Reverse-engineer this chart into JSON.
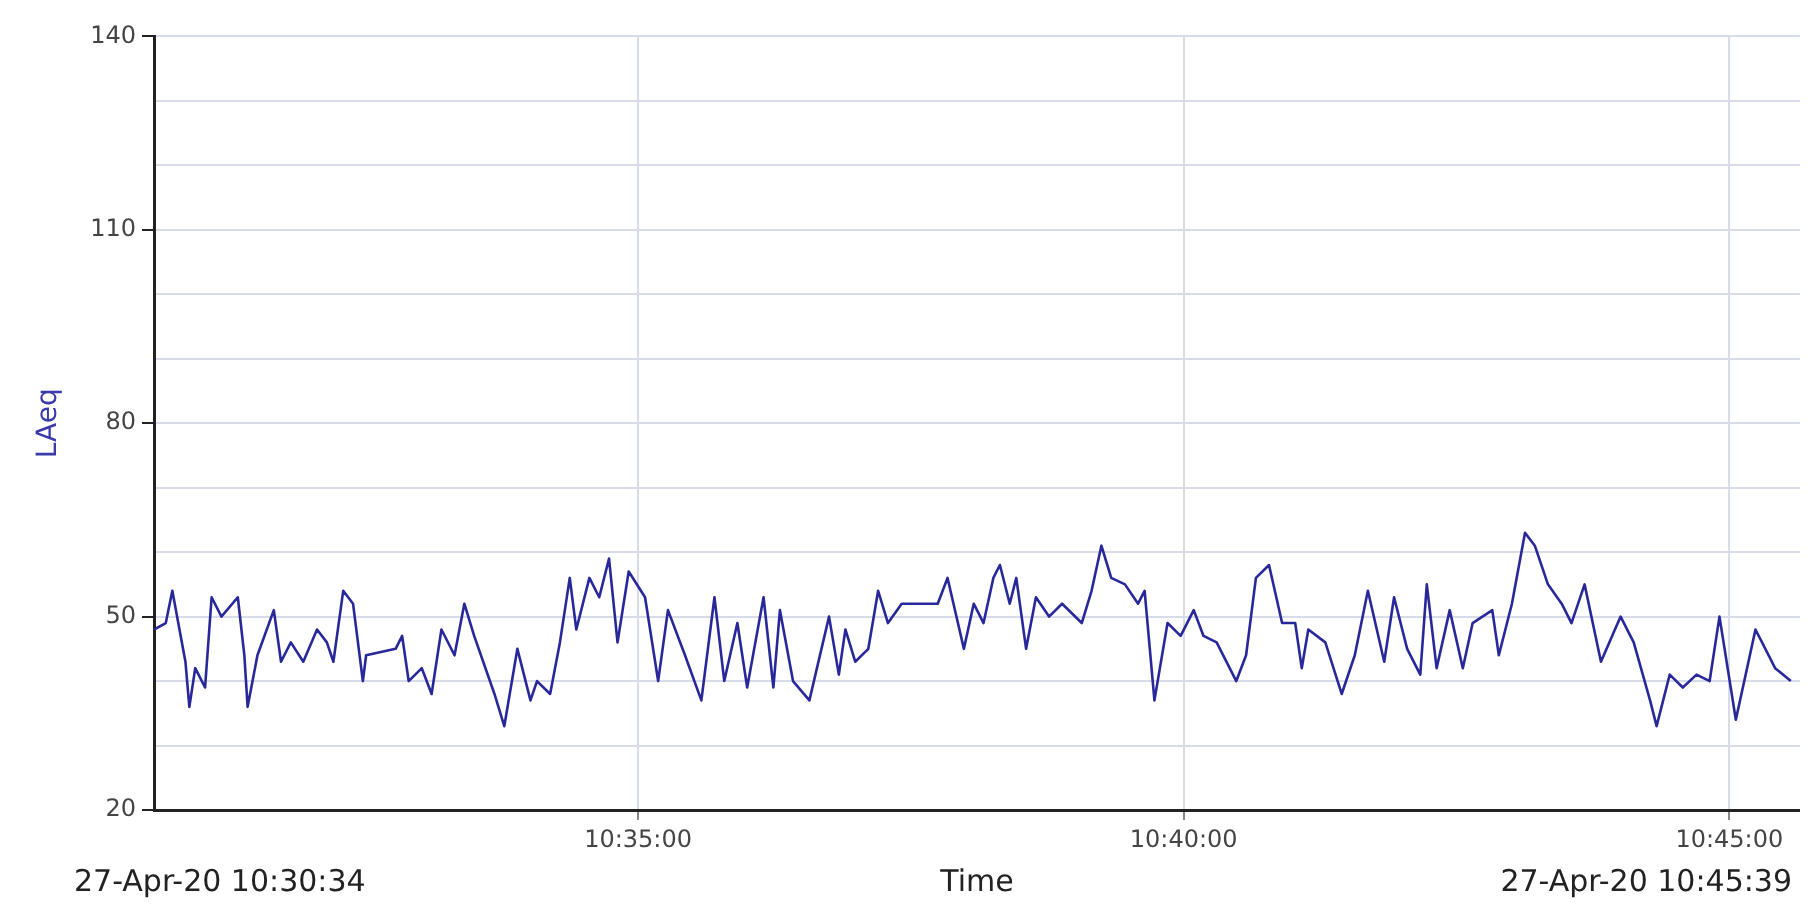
{
  "chart_data": {
    "type": "line",
    "ylabel": "LAeq",
    "xlabel": "Time",
    "annotations": [
      "27-Apr-20 10:30:34",
      "27-Apr-20 10:45:39"
    ],
    "xlim": [
      10.5094,
      10.7608
    ],
    "xticks": [
      {
        "value": 10.58333,
        "label": "10:35:00"
      },
      {
        "value": 10.66667,
        "label": "10:40:00"
      },
      {
        "value": 10.75,
        "label": "10:45:00"
      }
    ],
    "ylim": [
      20,
      140
    ],
    "yticks": [
      20,
      {
        "value": 30,
        "label": null
      },
      {
        "value": 40,
        "label": null
      },
      50,
      {
        "value": 60,
        "label": null
      },
      {
        "value": 70,
        "label": null
      },
      80,
      {
        "value": 90,
        "label": null
      },
      {
        "value": 100,
        "label": null
      },
      110,
      {
        "value": 120,
        "label": null
      },
      {
        "value": 130,
        "label": null
      },
      140
    ],
    "grid": true,
    "legend": false,
    "marker": "none",
    "line_style": "solid",
    "series": [
      {
        "color": "#28289a",
        "x": [
          10.5094,
          10.5112,
          10.5122,
          10.5142,
          10.5148,
          10.5157,
          10.5172,
          10.5182,
          10.5197,
          10.5222,
          10.5232,
          10.5237,
          10.5252,
          10.5277,
          10.5288,
          10.5303,
          10.5322,
          10.5343,
          10.5358,
          10.5368,
          10.5383,
          10.5398,
          10.5413,
          10.5418,
          10.5463,
          10.5473,
          10.5483,
          10.5503,
          10.5518,
          10.5533,
          10.5553,
          10.5568,
          10.5583,
          10.5614,
          10.5629,
          10.5649,
          10.5669,
          10.5679,
          10.5699,
          10.5714,
          10.5729,
          10.5739,
          10.5759,
          10.5774,
          10.5789,
          10.5802,
          10.5819,
          10.5844,
          10.5864,
          10.5879,
          10.5905,
          10.593,
          10.595,
          10.5965,
          10.5985,
          10.6,
          10.6025,
          10.604,
          10.605,
          10.607,
          10.6095,
          10.6125,
          10.614,
          10.615,
          10.6165,
          10.6185,
          10.62,
          10.6215,
          10.6236,
          10.6266,
          10.6291,
          10.6306,
          10.6331,
          10.6346,
          10.6361,
          10.6376,
          10.6386,
          10.6401,
          10.6411,
          10.6426,
          10.6441,
          10.6461,
          10.6481,
          10.6511,
          10.6526,
          10.6541,
          10.6556,
          10.6577,
          10.6597,
          10.6607,
          10.6622,
          10.6642,
          10.6662,
          10.6682,
          10.6697,
          10.6717,
          10.6747,
          10.6762,
          10.6777,
          10.6797,
          10.6817,
          10.6837,
          10.6847,
          10.6857,
          10.6883,
          10.6908,
          10.6928,
          10.6948,
          10.6973,
          10.6988,
          10.7008,
          10.7028,
          10.7038,
          10.7053,
          10.7073,
          10.7093,
          10.7108,
          10.7138,
          10.7148,
          10.7168,
          10.7188,
          10.7203,
          10.7223,
          10.7244,
          10.7259,
          10.7279,
          10.7304,
          10.7334,
          10.7354,
          10.7379,
          10.7389,
          10.7409,
          10.7429,
          10.745,
          10.747,
          10.7485,
          10.751,
          10.754,
          10.757,
          10.7594
        ],
        "values": [
          48,
          49,
          54,
          43,
          36,
          42,
          39,
          53,
          50,
          53,
          44,
          36,
          44,
          51,
          43,
          46,
          43,
          48,
          46,
          43,
          54,
          52,
          40,
          44,
          45,
          47,
          40,
          42,
          38,
          48,
          44,
          52,
          47,
          38,
          33,
          45,
          37,
          40,
          38,
          46,
          56,
          48,
          56,
          53,
          59,
          46,
          57,
          53,
          40,
          51,
          44,
          37,
          53,
          40,
          49,
          39,
          53,
          39,
          51,
          40,
          37,
          50,
          41,
          48,
          43,
          45,
          54,
          49,
          52,
          52,
          52,
          56,
          45,
          52,
          49,
          56,
          58,
          52,
          56,
          45,
          53,
          50,
          52,
          49,
          54,
          61,
          56,
          55,
          52,
          54,
          37,
          49,
          47,
          51,
          47,
          46,
          40,
          44,
          56,
          58,
          49,
          49,
          42,
          48,
          46,
          38,
          44,
          54,
          43,
          53,
          45,
          41,
          55,
          42,
          51,
          42,
          49,
          51,
          44,
          52,
          63,
          61,
          55,
          52,
          49,
          55,
          43,
          50,
          46,
          37,
          33,
          41,
          39,
          41,
          40,
          50,
          34,
          48,
          42,
          40
        ]
      }
    ]
  }
}
